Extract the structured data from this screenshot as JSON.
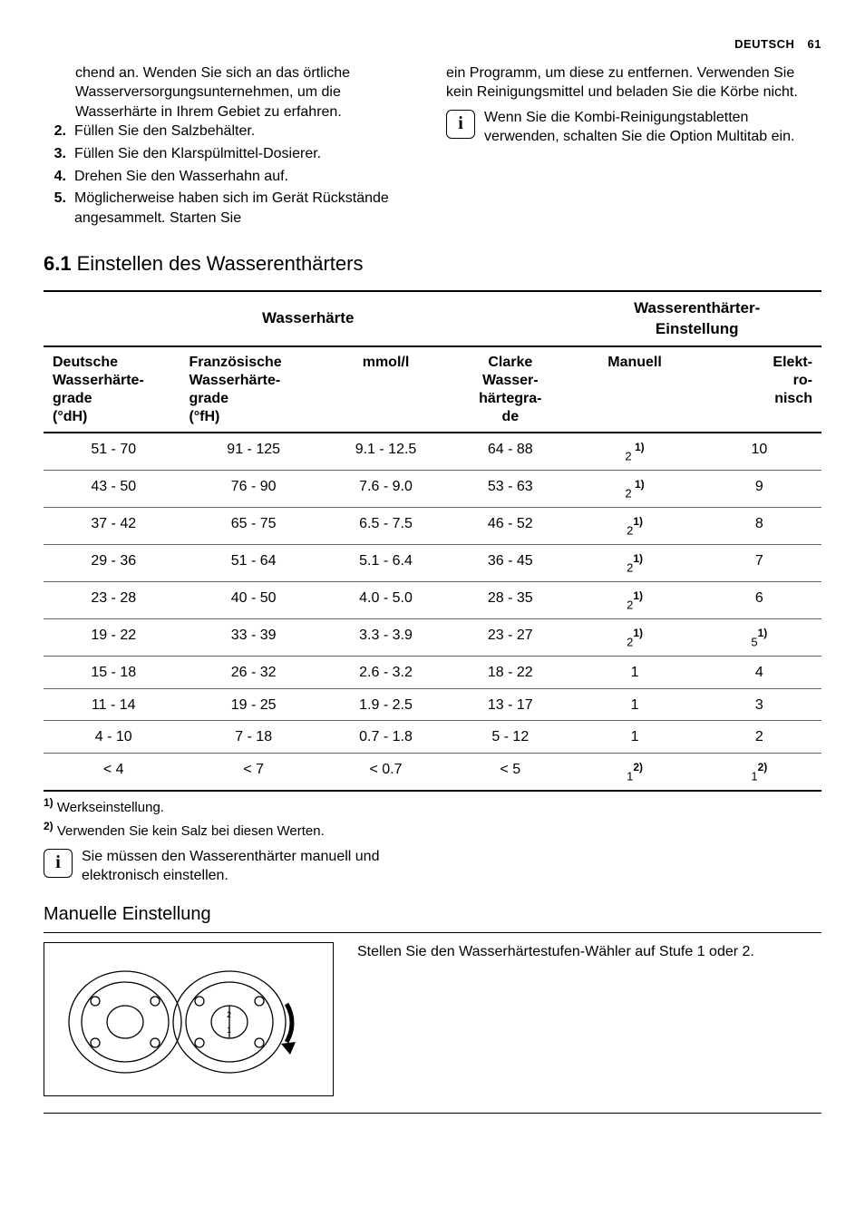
{
  "header": {
    "lang": "DEUTSCH",
    "page": "61"
  },
  "left": {
    "continuation": "chend an. Wenden Sie sich an das örtliche Wasserversorgungsunternehmen, um die Wasserhärte in Ihrem Gebiet zu erfahren.",
    "steps": [
      {
        "n": "2.",
        "t": "Füllen Sie den Salzbehälter."
      },
      {
        "n": "3.",
        "t": "Füllen Sie den Klarspülmittel-Dosierer."
      },
      {
        "n": "4.",
        "t": "Drehen Sie den Wasserhahn auf."
      },
      {
        "n": "5.",
        "t": "Möglicherweise haben sich im Gerät Rückstände angesammelt. Starten Sie"
      }
    ]
  },
  "right": {
    "continuation": "ein Programm, um diese zu entfernen. Verwenden Sie kein Reinigungsmittel und beladen Sie die Körbe nicht.",
    "info": "Wenn Sie die Kombi-Reinigungstabletten verwenden, schalten Sie die Option Multitab ein."
  },
  "section": {
    "num": "6.1",
    "title": "Einstellen des Wasserenthärters"
  },
  "table": {
    "group1": "Wasserhärte",
    "group2_a": "Wasserenthärter-",
    "group2_b": "Einstellung",
    "cols": {
      "c1a": "Deutsche",
      "c1b": "Wasserhärte-",
      "c1c": "grade",
      "c1d": "(°dH)",
      "c2a": "Französische",
      "c2b": "Wasserhärte-",
      "c2c": "grade",
      "c2d": "(°fH)",
      "c3": "mmol/l",
      "c4a": "Clarke",
      "c4b": "Wasser-",
      "c4c": "härtegra-",
      "c4d": "de",
      "c5": "Manuell",
      "c6a": "Elekt-",
      "c6b": "ro-",
      "c6c": "nisch"
    },
    "rows": [
      {
        "dH": "51 - 70",
        "fH": "91 - 125",
        "mmol": "9.1 - 12.5",
        "clarke": "64 - 88",
        "man_base": "2",
        "man_sup": " 1)",
        "elek": "10",
        "elek_base": "",
        "elek_sup": ""
      },
      {
        "dH": "43 - 50",
        "fH": "76 - 90",
        "mmol": "7.6 - 9.0",
        "clarke": "53 - 63",
        "man_base": "2",
        "man_sup": " 1)",
        "elek": "9",
        "elek_base": "",
        "elek_sup": ""
      },
      {
        "dH": "37 - 42",
        "fH": "65 - 75",
        "mmol": "6.5 - 7.5",
        "clarke": "46 - 52",
        "man_base": "2",
        "man_sup": "1)",
        "elek": "8",
        "elek_base": "",
        "elek_sup": ""
      },
      {
        "dH": "29 - 36",
        "fH": "51 - 64",
        "mmol": "5.1 - 6.4",
        "clarke": "36 - 45",
        "man_base": "2",
        "man_sup": "1)",
        "elek": "7",
        "elek_base": "",
        "elek_sup": ""
      },
      {
        "dH": "23 - 28",
        "fH": "40 - 50",
        "mmol": "4.0 - 5.0",
        "clarke": "28 - 35",
        "man_base": "2",
        "man_sup": "1)",
        "elek": "6",
        "elek_base": "",
        "elek_sup": ""
      },
      {
        "dH": "19 - 22",
        "fH": "33 - 39",
        "mmol": "3.3 - 3.9",
        "clarke": "23 - 27",
        "man_base": "2",
        "man_sup": "1)",
        "elek": "",
        "elek_base": "5",
        "elek_sup": "1)"
      },
      {
        "dH": "15 - 18",
        "fH": "26 - 32",
        "mmol": "2.6 - 3.2",
        "clarke": "18 - 22",
        "man_base": "1",
        "man_sup": "",
        "elek": "4",
        "elek_base": "",
        "elek_sup": ""
      },
      {
        "dH": "11 - 14",
        "fH": "19 - 25",
        "mmol": "1.9 - 2.5",
        "clarke": "13 - 17",
        "man_base": "1",
        "man_sup": "",
        "elek": "3",
        "elek_base": "",
        "elek_sup": ""
      },
      {
        "dH": "4 - 10",
        "fH": "7 - 18",
        "mmol": "0.7 - 1.8",
        "clarke": "5 - 12",
        "man_base": "1",
        "man_sup": "",
        "elek": "2",
        "elek_base": "",
        "elek_sup": ""
      },
      {
        "dH": "< 4",
        "fH": "< 7",
        "mmol": "< 0.7",
        "clarke": "< 5",
        "man_base": "1",
        "man_sup": "2)",
        "elek": "",
        "elek_base": "1",
        "elek_sup": "2)"
      }
    ]
  },
  "footnotes": {
    "f1_mark": "1)",
    "f1_text": " Werkseinstellung.",
    "f2_mark": "2)",
    "f2_text": " Verwenden Sie kein Salz bei diesen Werten."
  },
  "info_below": "Sie müssen den Wasserenthärter manuell und elektronisch einstellen.",
  "manual": {
    "heading": "Manuelle Einstellung",
    "text": "Stellen Sie den Wasserhärtestufen-Wähler auf Stufe 1 oder 2."
  },
  "info_glyph": "i"
}
